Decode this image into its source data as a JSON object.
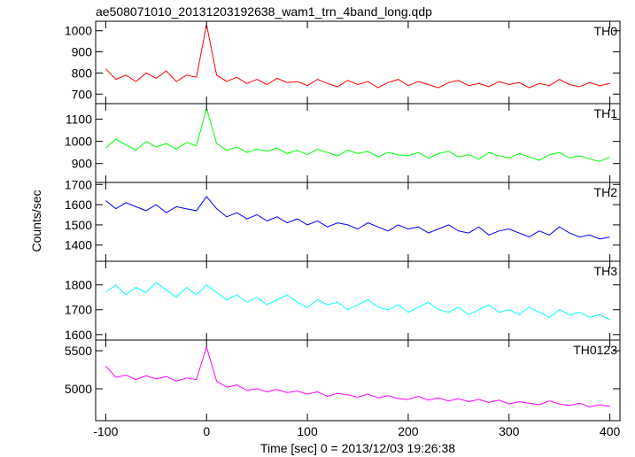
{
  "chart_data": [
    {
      "type": "line",
      "title": "ae508071010_20131203192638_wam1_trn_4band_long.qdp",
      "x": [
        -100,
        -90,
        -80,
        -70,
        -60,
        -50,
        -40,
        -30,
        -20,
        -10,
        0,
        10,
        20,
        30,
        40,
        50,
        60,
        70,
        80,
        90,
        100,
        110,
        120,
        130,
        140,
        150,
        160,
        170,
        180,
        190,
        200,
        210,
        220,
        230,
        240,
        250,
        260,
        270,
        280,
        290,
        300,
        310,
        320,
        330,
        340,
        350,
        360,
        370,
        380,
        390,
        400
      ],
      "xlim": [
        -110,
        410
      ],
      "xticks": [
        -100,
        0,
        100,
        200,
        300,
        400
      ],
      "ylim": [
        655,
        1045
      ],
      "yticks": [
        700,
        800,
        900,
        1000
      ],
      "series": [
        {
          "name": "TH0",
          "color": "#ff0000",
          "values": [
            820,
            770,
            790,
            760,
            800,
            775,
            810,
            760,
            790,
            780,
            1030,
            790,
            760,
            780,
            750,
            770,
            745,
            775,
            755,
            760,
            740,
            770,
            750,
            735,
            765,
            745,
            760,
            730,
            755,
            770,
            740,
            760,
            745,
            730,
            755,
            765,
            740,
            750,
            735,
            760,
            745,
            755,
            730,
            750,
            740,
            770,
            745,
            735,
            755,
            740,
            750
          ]
        }
      ]
    },
    {
      "type": "line",
      "x": [
        -100,
        -90,
        -80,
        -70,
        -60,
        -50,
        -40,
        -30,
        -20,
        -10,
        0,
        10,
        20,
        30,
        40,
        50,
        60,
        70,
        80,
        90,
        100,
        110,
        120,
        130,
        140,
        150,
        160,
        170,
        180,
        190,
        200,
        210,
        220,
        230,
        240,
        250,
        260,
        270,
        280,
        290,
        300,
        310,
        320,
        330,
        340,
        350,
        360,
        370,
        380,
        390,
        400
      ],
      "xlim": [
        -110,
        410
      ],
      "xticks": [
        -100,
        0,
        100,
        200,
        300,
        400
      ],
      "ylim": [
        815,
        1170
      ],
      "yticks": [
        900,
        1000,
        1100
      ],
      "series": [
        {
          "name": "TH1",
          "color": "#00ff00",
          "values": [
            970,
            1010,
            985,
            960,
            1000,
            975,
            990,
            965,
            995,
            980,
            1150,
            990,
            960,
            975,
            950,
            965,
            955,
            970,
            945,
            960,
            940,
            965,
            950,
            935,
            960,
            945,
            955,
            930,
            950,
            940,
            935,
            950,
            925,
            945,
            955,
            930,
            940,
            920,
            950,
            935,
            925,
            945,
            930,
            915,
            940,
            950,
            925,
            935,
            920,
            910,
            930
          ]
        }
      ]
    },
    {
      "type": "line",
      "ylabel": "Counts/sec",
      "x": [
        -100,
        -90,
        -80,
        -70,
        -60,
        -50,
        -40,
        -30,
        -20,
        -10,
        0,
        10,
        20,
        30,
        40,
        50,
        60,
        70,
        80,
        90,
        100,
        110,
        120,
        130,
        140,
        150,
        160,
        170,
        180,
        190,
        200,
        210,
        220,
        230,
        240,
        250,
        260,
        270,
        280,
        290,
        300,
        310,
        320,
        330,
        340,
        350,
        360,
        370,
        380,
        390,
        400
      ],
      "xlim": [
        -110,
        410
      ],
      "xticks": [
        -100,
        0,
        100,
        200,
        300,
        400
      ],
      "ylim": [
        1320,
        1710
      ],
      "yticks": [
        1400,
        1500,
        1600,
        1700
      ],
      "series": [
        {
          "name": "TH2",
          "color": "#0000ff",
          "values": [
            1620,
            1580,
            1610,
            1590,
            1570,
            1600,
            1560,
            1590,
            1580,
            1570,
            1640,
            1580,
            1540,
            1560,
            1530,
            1550,
            1520,
            1540,
            1510,
            1530,
            1500,
            1520,
            1490,
            1510,
            1500,
            1480,
            1510,
            1490,
            1470,
            1500,
            1480,
            1490,
            1460,
            1480,
            1500,
            1470,
            1460,
            1490,
            1450,
            1470,
            1480,
            1460,
            1440,
            1470,
            1450,
            1490,
            1460,
            1440,
            1450,
            1430,
            1440
          ]
        }
      ]
    },
    {
      "type": "line",
      "x": [
        -100,
        -90,
        -80,
        -70,
        -60,
        -50,
        -40,
        -30,
        -20,
        -10,
        0,
        10,
        20,
        30,
        40,
        50,
        60,
        70,
        80,
        90,
        100,
        110,
        120,
        130,
        140,
        150,
        160,
        170,
        180,
        190,
        200,
        210,
        220,
        230,
        240,
        250,
        260,
        270,
        280,
        290,
        300,
        310,
        320,
        330,
        340,
        350,
        360,
        370,
        380,
        390,
        400
      ],
      "xlim": [
        -110,
        410
      ],
      "xticks": [
        -100,
        0,
        100,
        200,
        300,
        400
      ],
      "ylim": [
        1578,
        1895
      ],
      "yticks": [
        1600,
        1700,
        1800
      ],
      "series": [
        {
          "name": "TH3",
          "color": "#00ffff",
          "values": [
            1770,
            1800,
            1760,
            1790,
            1770,
            1810,
            1780,
            1750,
            1790,
            1760,
            1800,
            1770,
            1740,
            1760,
            1730,
            1750,
            1720,
            1740,
            1760,
            1730,
            1710,
            1740,
            1720,
            1730,
            1700,
            1720,
            1740,
            1710,
            1700,
            1720,
            1690,
            1710,
            1730,
            1700,
            1690,
            1710,
            1680,
            1700,
            1720,
            1690,
            1700,
            1680,
            1710,
            1690,
            1670,
            1700,
            1680,
            1690,
            1670,
            1680,
            1660
          ]
        }
      ]
    },
    {
      "type": "line",
      "xlabel": "Time [sec] 0 = 2013/12/03 19:26:38",
      "x": [
        -100,
        -90,
        -80,
        -70,
        -60,
        -50,
        -40,
        -30,
        -20,
        -10,
        0,
        10,
        20,
        30,
        40,
        50,
        60,
        70,
        80,
        90,
        100,
        110,
        120,
        130,
        140,
        150,
        160,
        170,
        180,
        190,
        200,
        210,
        220,
        230,
        240,
        250,
        260,
        270,
        280,
        290,
        300,
        310,
        320,
        330,
        340,
        350,
        360,
        370,
        380,
        390,
        400
      ],
      "xlim": [
        -110,
        410
      ],
      "xticks": [
        -100,
        0,
        100,
        200,
        300,
        400
      ],
      "ylim": [
        4580,
        5640
      ],
      "yticks": [
        5000,
        5500
      ],
      "series": [
        {
          "name": "TH0123",
          "color": "#ff00ff",
          "values": [
            5300,
            5150,
            5180,
            5120,
            5170,
            5130,
            5160,
            5100,
            5140,
            5120,
            5550,
            5100,
            5020,
            5050,
            4980,
            5000,
            4960,
            4990,
            4950,
            4970,
            4930,
            4960,
            4900,
            4940,
            4920,
            4890,
            4930,
            4880,
            4910,
            4870,
            4860,
            4900,
            4850,
            4880,
            4840,
            4870,
            4830,
            4860,
            4820,
            4850,
            4800,
            4830,
            4810,
            4790,
            4840,
            4800,
            4780,
            4810,
            4760,
            4790,
            4770
          ]
        }
      ]
    }
  ]
}
